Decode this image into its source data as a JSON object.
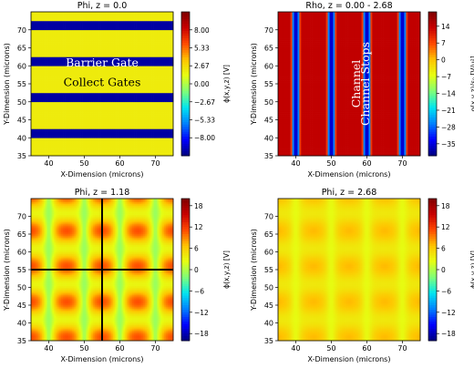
{
  "colormap": [
    "#00007f",
    "#0000ff",
    "#0080ff",
    "#00e5f0",
    "#7dff7a",
    "#e5ff12",
    "#ffc400",
    "#ff4a00",
    "#c80000",
    "#7f0000"
  ],
  "overlay_colors": {
    "annotation": "#ffffff",
    "annotation_dark": "#000000",
    "cut_line": "#000000"
  },
  "chart_data": [
    {
      "id": "panel-tl",
      "type": "heatmap",
      "title": "Phi, z = 0.0",
      "xlabel": "X-Dimension (microns)",
      "ylabel": "Y-Dimension (microns)",
      "xlim": [
        35,
        75
      ],
      "ylim": [
        35,
        75
      ],
      "xticks": [
        40,
        50,
        60,
        70
      ],
      "yticks": [
        35,
        40,
        45,
        50,
        55,
        60,
        65,
        70
      ],
      "field": "phi_z0",
      "colorbar": {
        "label": "ϕ(x,y,z) [V]",
        "range": [
          -10.67,
          10.67
        ],
        "ticks": [
          8.0,
          5.33,
          2.67,
          0.0,
          -2.67,
          -5.33,
          -8.0
        ],
        "tick_labels": [
          "8.00",
          "5.33",
          "2.67",
          "0.00",
          "−2.67",
          "−5.33",
          "−8.00"
        ]
      },
      "barrier_bands_y": [
        [
          70,
          72.5
        ],
        [
          60,
          62.5
        ],
        [
          50,
          52.5
        ],
        [
          40,
          42.5
        ]
      ],
      "barrier_value": -10.0,
      "collect_value": 2.0,
      "annotations": [
        {
          "text": "Barrier Gate",
          "x": 55,
          "y": 60.7,
          "color": "annotation"
        },
        {
          "text": "Collect Gates",
          "x": 55,
          "y": 55.3,
          "color": "annotation_dark"
        }
      ]
    },
    {
      "id": "panel-tr",
      "type": "heatmap",
      "title": "Rho, z = 0.00 - 2.68",
      "xlabel": "X-Dimension (microns)",
      "ylabel": "Y-Dimension (microns)",
      "xlim": [
        35,
        75
      ],
      "ylim": [
        35,
        75
      ],
      "xticks": [
        40,
        50,
        60,
        70
      ],
      "yticks": [
        35,
        40,
        45,
        50,
        55,
        60,
        65,
        70
      ],
      "field": "rho_channel_stops",
      "colorbar": {
        "label": "ρ(x,y,z)/ε₀ [V/µ²]",
        "range": [
          -40,
          20
        ],
        "ticks": [
          14,
          7,
          0,
          -7,
          -14,
          -21,
          -28,
          -35
        ],
        "tick_labels": [
          "14",
          "7",
          "0",
          "−7",
          "−14",
          "−21",
          "−28",
          "−35"
        ]
      },
      "channel_stop_centers_x": [
        40,
        50,
        60,
        70
      ],
      "channel_stop_halfwidth": 1.3,
      "annotations": [
        {
          "text": "Channel",
          "x": 57.2,
          "y": 55,
          "rotate": -90,
          "color": "annotation"
        },
        {
          "text": "Channel Stops",
          "x": 59.8,
          "y": 55,
          "rotate": -90,
          "color": "annotation"
        }
      ]
    },
    {
      "id": "panel-bl",
      "type": "heatmap",
      "title": "Phi, z = 1.18",
      "xlabel": "X-Dimension (microns)",
      "ylabel": "Y-Dimension (microns)",
      "xlim": [
        35,
        75
      ],
      "ylim": [
        35,
        75
      ],
      "xticks": [
        40,
        50,
        60,
        70
      ],
      "yticks": [
        35,
        40,
        45,
        50,
        55,
        60,
        65,
        70
      ],
      "field": "phi_z118",
      "colorbar": {
        "label": "ϕ(x,y,z) [V]",
        "range": [
          -20,
          20
        ],
        "ticks": [
          18,
          12,
          6,
          0,
          -6,
          -12,
          -18
        ],
        "tick_labels": [
          "18",
          "12",
          "6",
          "0",
          "−6",
          "−12",
          "−18"
        ]
      },
      "cut_lines": [
        {
          "orientation": "horizontal",
          "value": 55
        },
        {
          "orientation": "vertical",
          "value": 55
        }
      ]
    },
    {
      "id": "panel-br",
      "type": "heatmap",
      "title": "Phi, z = 2.68",
      "xlabel": "X-Dimension (microns)",
      "ylabel": "Y-Dimension (microns)",
      "xlim": [
        35,
        75
      ],
      "ylim": [
        35,
        75
      ],
      "xticks": [
        40,
        50,
        60,
        70
      ],
      "yticks": [
        35,
        40,
        45,
        50,
        55,
        60,
        65,
        70
      ],
      "field": "phi_z268",
      "colorbar": {
        "label": "ϕ(x,y,z) [V]",
        "range": [
          -20,
          20
        ],
        "ticks": [
          18,
          12,
          6,
          0,
          -6,
          -12,
          -18
        ],
        "tick_labels": [
          "18",
          "12",
          "6",
          "0",
          "−6",
          "−12",
          "−18"
        ]
      }
    }
  ]
}
